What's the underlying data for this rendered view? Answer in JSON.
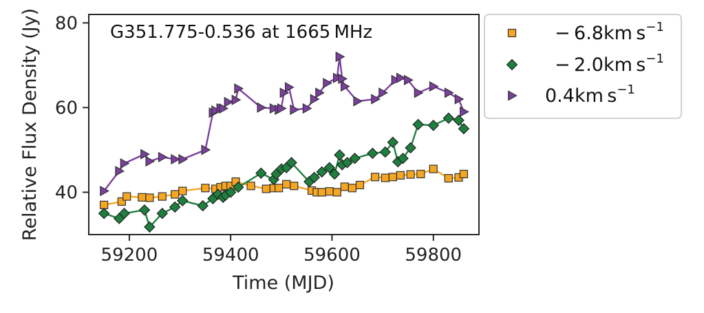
{
  "chart_data": {
    "type": "line",
    "title": "G351.775-0.536 at 1665 MHz",
    "xlabel": "Time (MJD)",
    "ylabel": "Relative Flux Density (Jy)",
    "xlim": [
      59120,
      59890
    ],
    "ylim": [
      30,
      82
    ],
    "xticks": [
      59200,
      59400,
      59600,
      59800
    ],
    "yticks": [
      40,
      60,
      80
    ],
    "legend_position": "outside-right-top",
    "grid": false,
    "series": [
      {
        "name": "− 6.8km s",
        "name_sup": "−1",
        "marker": "square",
        "color": "#F5A623",
        "x": [
          59150,
          59185,
          59195,
          59225,
          59240,
          59265,
          59290,
          59305,
          59350,
          59370,
          59380,
          59390,
          59400,
          59410,
          59440,
          59470,
          59485,
          59495,
          59510,
          59525,
          59560,
          59570,
          59580,
          59595,
          59610,
          59625,
          59640,
          59655,
          59685,
          59705,
          59720,
          59735,
          59755,
          59775,
          59800,
          59830,
          59850,
          59860
        ],
        "y": [
          37.0,
          37.8,
          39.0,
          38.8,
          38.7,
          39.0,
          39.5,
          40.3,
          41.0,
          40.8,
          41.2,
          41.5,
          41.5,
          42.5,
          41.5,
          40.8,
          41.0,
          41.0,
          41.9,
          41.5,
          40.4,
          40.0,
          40.0,
          40.2,
          40.0,
          41.3,
          41.0,
          41.7,
          43.6,
          43.4,
          43.6,
          44.0,
          44.2,
          44.3,
          45.5,
          43.3,
          43.5,
          44.3
        ]
      },
      {
        "name": "− 2.0km s",
        "name_sup": "−1",
        "marker": "diamond",
        "color": "#1E7F3E",
        "x": [
          59150,
          59180,
          59190,
          59230,
          59240,
          59265,
          59290,
          59305,
          59345,
          59365,
          59375,
          59385,
          59390,
          59400,
          59415,
          59460,
          59485,
          59490,
          59500,
          59510,
          59520,
          59555,
          59565,
          59580,
          59595,
          59605,
          59615,
          59620,
          59630,
          59645,
          59680,
          59705,
          59720,
          59730,
          59740,
          59755,
          59770,
          59800,
          59830,
          59850,
          59860
        ],
        "y": [
          35.0,
          33.8,
          35.0,
          35.8,
          31.8,
          35.0,
          36.5,
          38.0,
          36.8,
          38.5,
          39.5,
          38.8,
          39.3,
          40.0,
          41.2,
          44.5,
          43.0,
          44.3,
          45.5,
          45.8,
          47.0,
          42.5,
          43.5,
          44.8,
          45.8,
          44.3,
          48.8,
          46.5,
          47.0,
          48.0,
          49.2,
          49.5,
          51.8,
          47.2,
          48.0,
          50.5,
          56.0,
          55.8,
          57.5,
          57.0,
          55.0
        ]
      },
      {
        "name": "0.4km s",
        "name_sup": "−1",
        "marker": "triangle-right",
        "color": "#7B3F9E",
        "x": [
          59150,
          59180,
          59190,
          59230,
          59240,
          59265,
          59290,
          59305,
          59350,
          59365,
          59370,
          59380,
          59385,
          59395,
          59410,
          59415,
          59460,
          59485,
          59495,
          59500,
          59505,
          59515,
          59525,
          59550,
          59565,
          59575,
          59590,
          59610,
          59615,
          59620,
          59625,
          59650,
          59685,
          59700,
          59725,
          59735,
          59750,
          59770,
          59800,
          59830,
          59850,
          59860
        ],
        "y": [
          40.3,
          45.0,
          46.8,
          49.0,
          47.3,
          48.3,
          47.8,
          47.8,
          50.0,
          58.8,
          59.3,
          59.8,
          59.8,
          61.3,
          61.8,
          64.5,
          60.0,
          59.8,
          59.5,
          59.8,
          63.5,
          64.8,
          59.5,
          59.8,
          62.0,
          63.5,
          65.8,
          67.0,
          72.0,
          66.8,
          65.0,
          61.5,
          62.0,
          63.5,
          66.5,
          67.0,
          66.5,
          63.5,
          65.0,
          63.5,
          62.0,
          59.0
        ]
      }
    ]
  }
}
